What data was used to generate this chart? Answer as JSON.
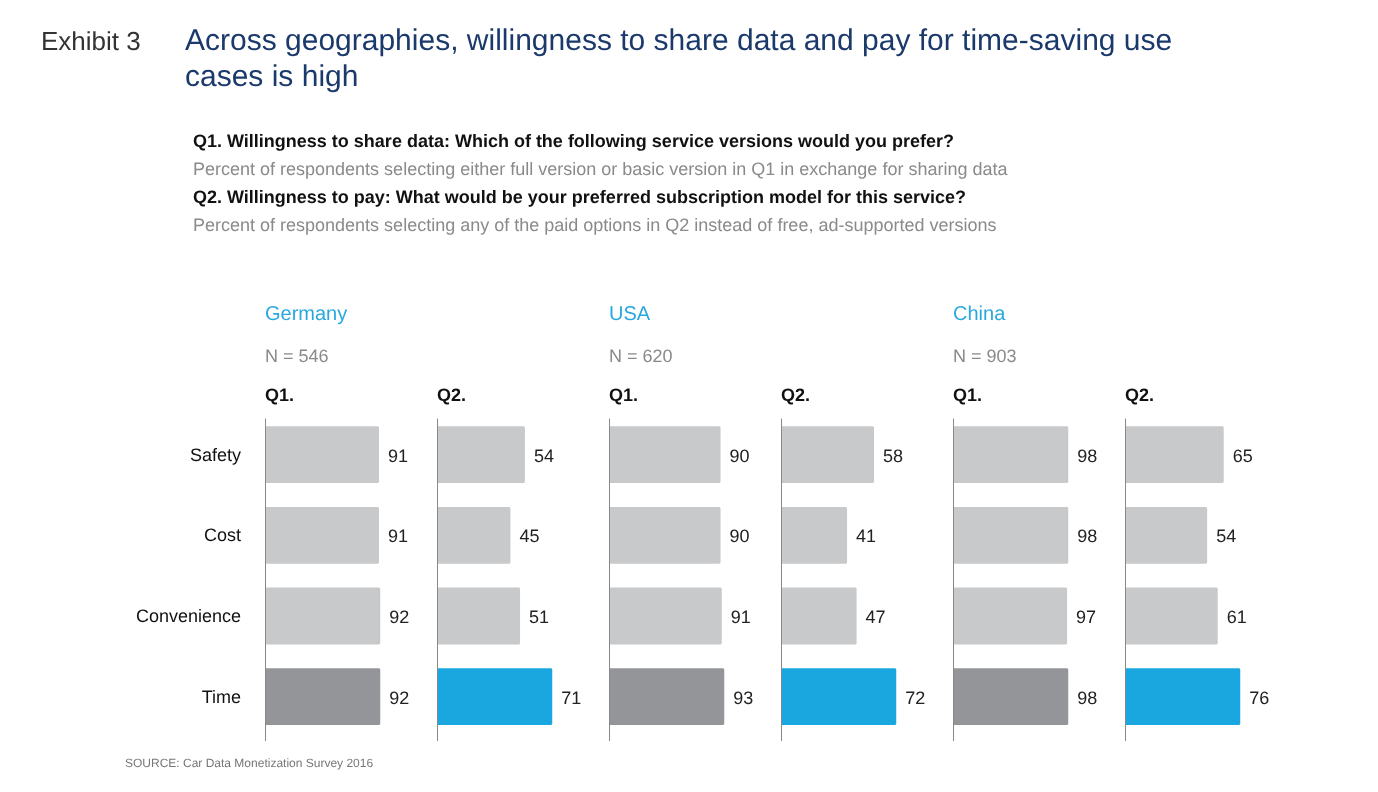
{
  "chart_data": [
    {
      "type": "other",
      "title": "Across geographies, willingness to share data and pay for time-saving use cases is high",
      "annotations": [
        "Exhibit 3",
        "Q1. Willingness to share data: Which of the following service versions would you prefer?",
        "Percent of respondents selecting either full version or basic version in Q1 in exchange for sharing data",
        "Q2. Willingness to pay: What would be your preferred subscription model for this service?",
        "Percent of respondents selecting any of the paid options in Q2 instead of free, ad-supported versions",
        "SOURCE: Car Data Monetization Survey 2016"
      ]
    },
    {
      "type": "bar",
      "orientation": "horizontal",
      "title": "Q1.",
      "annotations": [
        "Germany",
        "N = 546"
      ],
      "categories": [
        "Safety",
        "Cost",
        "Convenience",
        "Time"
      ],
      "values": [
        91,
        91,
        92,
        92
      ],
      "colors": [
        "#c8c9cb",
        "#c8c9cb",
        "#c8c9cb",
        "#939598"
      ],
      "data_labels": true,
      "tick_labels": "y"
    },
    {
      "type": "bar",
      "orientation": "horizontal",
      "title": "Q2.",
      "categories": [
        null,
        null,
        null,
        null
      ],
      "values": [
        54,
        45,
        51,
        71
      ],
      "colors": [
        "#c8c9cb",
        "#c8c9cb",
        "#c8c9cb",
        "#1aa7e0"
      ],
      "data_labels": true,
      "tick_labels": false
    },
    {
      "type": "bar",
      "orientation": "horizontal",
      "title": "Q1.",
      "annotations": [
        "USA",
        "N = 620"
      ],
      "categories": [
        null,
        null,
        null,
        null
      ],
      "values": [
        90,
        90,
        91,
        93
      ],
      "colors": [
        "#c8c9cb",
        "#c8c9cb",
        "#c8c9cb",
        "#939598"
      ],
      "data_labels": true,
      "tick_labels": false
    },
    {
      "type": "bar",
      "orientation": "horizontal",
      "title": "Q2.",
      "categories": [
        null,
        null,
        null,
        null
      ],
      "values": [
        58,
        41,
        47,
        72
      ],
      "colors": [
        "#c8c9cb",
        "#c8c9cb",
        "#c8c9cb",
        "#1aa7e0"
      ],
      "data_labels": true,
      "tick_labels": false
    },
    {
      "type": "bar",
      "orientation": "horizontal",
      "title": "Q1.",
      "annotations": [
        "China",
        "N = 903"
      ],
      "categories": [
        null,
        null,
        null,
        null
      ],
      "values": [
        98,
        98,
        97,
        98
      ],
      "colors": [
        "#c8c9cb",
        "#c8c9cb",
        "#c8c9cb",
        "#939598"
      ],
      "data_labels": true,
      "tick_labels": false
    },
    {
      "type": "bar",
      "orientation": "horizontal",
      "title": "Q2.",
      "categories": [
        null,
        null,
        null,
        null
      ],
      "values": [
        65,
        54,
        61,
        76
      ],
      "colors": [
        "#c8c9cb",
        "#c8c9cb",
        "#c8c9cb",
        "#1aa7e0"
      ],
      "data_labels": true,
      "tick_labels": false
    }
  ]
}
